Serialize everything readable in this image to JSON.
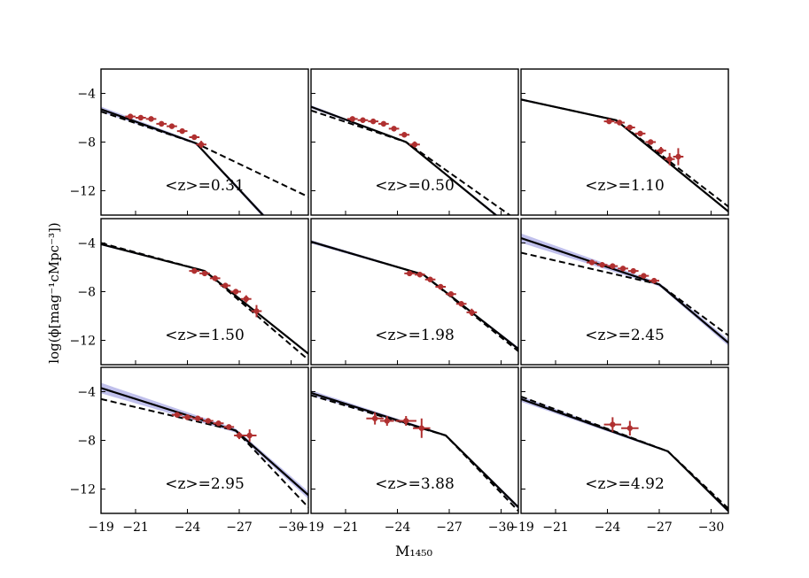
{
  "figure": {
    "xlabel": "M₁₄₅₀",
    "ylabel": "log(ϕ[mag⁻¹cMpc⁻³])"
  },
  "colors": {
    "data_marker": "#b03030",
    "model_line": "#000000",
    "uncertainty_band": "#8c8cdc"
  },
  "chart_data": [
    {
      "type": "line",
      "annotation": "<z>=0.31",
      "xlim": [
        -19,
        -31
      ],
      "ylim": [
        -14,
        -2
      ],
      "xticks": [
        "−19",
        "−21",
        "−24",
        "−27",
        "−30"
      ],
      "yticks": [
        "−4",
        "−8",
        "−12"
      ],
      "solid": {
        "x": [
          -19,
          -24.5,
          -31
        ],
        "y": [
          -5.3,
          -8.1,
          -18.0
        ]
      },
      "dashed": {
        "x": [
          -19,
          -24.5,
          -31
        ],
        "y": [
          -5.5,
          -8.1,
          -12.5
        ]
      },
      "band": 0.25,
      "points": [
        {
          "x": -20.7,
          "y": -5.9,
          "xerr": 0.3,
          "yerr": 0.15
        },
        {
          "x": -21.3,
          "y": -6.0,
          "xerr": 0.3,
          "yerr": 0.15
        },
        {
          "x": -21.9,
          "y": -6.1,
          "xerr": 0.3,
          "yerr": 0.15
        },
        {
          "x": -22.5,
          "y": -6.5,
          "xerr": 0.3,
          "yerr": 0.15
        },
        {
          "x": -23.1,
          "y": -6.7,
          "xerr": 0.3,
          "yerr": 0.15
        },
        {
          "x": -23.7,
          "y": -7.1,
          "xerr": 0.3,
          "yerr": 0.15
        },
        {
          "x": -24.4,
          "y": -7.6,
          "xerr": 0.3,
          "yerr": 0.2
        },
        {
          "x": -24.8,
          "y": -8.2,
          "xerr": 0.3,
          "yerr": 0.3
        }
      ]
    },
    {
      "type": "line",
      "annotation": "<z>=0.50",
      "xlim": [
        -19,
        -31
      ],
      "ylim": [
        -14,
        -2
      ],
      "xticks": [
        "−19",
        "−21",
        "−24",
        "−27",
        "−30"
      ],
      "yticks": [
        "−4",
        "−8",
        "−12"
      ],
      "solid": {
        "x": [
          -19,
          -24.5,
          -31
        ],
        "y": [
          -5.1,
          -8.0,
          -15.5
        ]
      },
      "dashed": {
        "x": [
          -19,
          -24.5,
          -31
        ],
        "y": [
          -5.4,
          -8.0,
          -14.5
        ]
      },
      "band": 0.15,
      "points": [
        {
          "x": -21.4,
          "y": -6.1,
          "xerr": 0.3,
          "yerr": 0.15
        },
        {
          "x": -22.0,
          "y": -6.2,
          "xerr": 0.3,
          "yerr": 0.15
        },
        {
          "x": -22.6,
          "y": -6.3,
          "xerr": 0.3,
          "yerr": 0.15
        },
        {
          "x": -23.2,
          "y": -6.5,
          "xerr": 0.3,
          "yerr": 0.15
        },
        {
          "x": -23.8,
          "y": -6.9,
          "xerr": 0.3,
          "yerr": 0.15
        },
        {
          "x": -24.4,
          "y": -7.4,
          "xerr": 0.3,
          "yerr": 0.2
        },
        {
          "x": -25.0,
          "y": -8.2,
          "xerr": 0.3,
          "yerr": 0.25
        }
      ]
    },
    {
      "type": "line",
      "annotation": "<z>=1.10",
      "xlim": [
        -19,
        -31
      ],
      "ylim": [
        -14,
        -2
      ],
      "xticks": [
        "−19",
        "−21",
        "−24",
        "−27",
        "−30"
      ],
      "yticks": [
        "−4",
        "−8",
        "−12"
      ],
      "solid": {
        "x": [
          -19,
          -24.5,
          -31
        ],
        "y": [
          -4.5,
          -6.2,
          -13.7
        ]
      },
      "dashed": {
        "x": [
          -19,
          -24.5,
          -31
        ],
        "y": [
          -4.5,
          -6.2,
          -13.3
        ]
      },
      "band": 0.1,
      "points": [
        {
          "x": -24.1,
          "y": -6.3,
          "xerr": 0.3,
          "yerr": 0.15
        },
        {
          "x": -24.7,
          "y": -6.4,
          "xerr": 0.3,
          "yerr": 0.15
        },
        {
          "x": -25.3,
          "y": -6.8,
          "xerr": 0.3,
          "yerr": 0.15
        },
        {
          "x": -25.9,
          "y": -7.3,
          "xerr": 0.3,
          "yerr": 0.15
        },
        {
          "x": -26.5,
          "y": -8.0,
          "xerr": 0.3,
          "yerr": 0.2
        },
        {
          "x": -27.1,
          "y": -8.7,
          "xerr": 0.3,
          "yerr": 0.3
        },
        {
          "x": -27.6,
          "y": -9.4,
          "xerr": 0.3,
          "yerr": 0.5
        },
        {
          "x": -28.1,
          "y": -9.2,
          "xerr": 0.3,
          "yerr": 0.7
        }
      ]
    },
    {
      "type": "line",
      "annotation": "<z>=1.50",
      "xlim": [
        -19,
        -31
      ],
      "ylim": [
        -14,
        -2
      ],
      "xticks": [
        "−19",
        "−21",
        "−24",
        "−27",
        "−30"
      ],
      "yticks": [
        "−4",
        "−8",
        "−12"
      ],
      "solid": {
        "x": [
          -19,
          -25.0,
          -31
        ],
        "y": [
          -4.1,
          -6.3,
          -13.1
        ]
      },
      "dashed": {
        "x": [
          -19,
          -25.0,
          -31
        ],
        "y": [
          -4.0,
          -6.3,
          -13.6
        ]
      },
      "band": 0.1,
      "points": [
        {
          "x": -24.4,
          "y": -6.3,
          "xerr": 0.3,
          "yerr": 0.15
        },
        {
          "x": -25.0,
          "y": -6.5,
          "xerr": 0.3,
          "yerr": 0.15
        },
        {
          "x": -25.6,
          "y": -6.9,
          "xerr": 0.3,
          "yerr": 0.15
        },
        {
          "x": -26.2,
          "y": -7.5,
          "xerr": 0.3,
          "yerr": 0.15
        },
        {
          "x": -26.8,
          "y": -8.0,
          "xerr": 0.3,
          "yerr": 0.2
        },
        {
          "x": -27.4,
          "y": -8.6,
          "xerr": 0.3,
          "yerr": 0.3
        },
        {
          "x": -28.0,
          "y": -9.6,
          "xerr": 0.3,
          "yerr": 0.5
        }
      ]
    },
    {
      "type": "line",
      "annotation": "<z>=1.98",
      "xlim": [
        -19,
        -31
      ],
      "ylim": [
        -14,
        -2
      ],
      "xticks": [
        "−19",
        "−21",
        "−24",
        "−27",
        "−30"
      ],
      "yticks": [
        "−4",
        "−8",
        "−12"
      ],
      "solid": {
        "x": [
          -19,
          -25.5,
          -31
        ],
        "y": [
          -3.9,
          -6.6,
          -12.7
        ]
      },
      "dashed": {
        "x": [
          -19,
          -25.5,
          -31
        ],
        "y": [
          -3.9,
          -6.6,
          -12.9
        ]
      },
      "band": 0.15,
      "points": [
        {
          "x": -24.7,
          "y": -6.5,
          "xerr": 0.3,
          "yerr": 0.15
        },
        {
          "x": -25.3,
          "y": -6.6,
          "xerr": 0.3,
          "yerr": 0.15
        },
        {
          "x": -25.9,
          "y": -7.0,
          "xerr": 0.3,
          "yerr": 0.15
        },
        {
          "x": -26.5,
          "y": -7.6,
          "xerr": 0.3,
          "yerr": 0.15
        },
        {
          "x": -27.1,
          "y": -8.2,
          "xerr": 0.3,
          "yerr": 0.2
        },
        {
          "x": -27.7,
          "y": -9.0,
          "xerr": 0.3,
          "yerr": 0.2
        },
        {
          "x": -28.3,
          "y": -9.7,
          "xerr": 0.3,
          "yerr": 0.3
        }
      ]
    },
    {
      "type": "line",
      "annotation": "<z>=2.45",
      "xlim": [
        -19,
        -31
      ],
      "ylim": [
        -14,
        -2
      ],
      "xticks": [
        "−19",
        "−21",
        "−24",
        "−27",
        "−30"
      ],
      "yticks": [
        "−4",
        "−8",
        "−12"
      ],
      "solid": {
        "x": [
          -19,
          -27.0,
          -31
        ],
        "y": [
          -3.6,
          -7.4,
          -12.2
        ]
      },
      "dashed": {
        "x": [
          -19,
          -27.0,
          -31
        ],
        "y": [
          -4.8,
          -7.4,
          -11.6
        ]
      },
      "band": 0.35,
      "points": [
        {
          "x": -23.1,
          "y": -5.6,
          "xerr": 0.3,
          "yerr": 0.15
        },
        {
          "x": -23.7,
          "y": -5.8,
          "xerr": 0.3,
          "yerr": 0.15
        },
        {
          "x": -24.3,
          "y": -5.9,
          "xerr": 0.3,
          "yerr": 0.15
        },
        {
          "x": -24.9,
          "y": -6.1,
          "xerr": 0.3,
          "yerr": 0.15
        },
        {
          "x": -25.5,
          "y": -6.3,
          "xerr": 0.3,
          "yerr": 0.15
        },
        {
          "x": -26.1,
          "y": -6.7,
          "xerr": 0.3,
          "yerr": 0.15
        },
        {
          "x": -26.7,
          "y": -7.1,
          "xerr": 0.3,
          "yerr": 0.2
        }
      ]
    },
    {
      "type": "line",
      "annotation": "<z>=2.95",
      "xlim": [
        -19,
        -31
      ],
      "ylim": [
        -14,
        -2
      ],
      "xticks": [
        "−19",
        "−21",
        "−24",
        "−27",
        "−30"
      ],
      "yticks": [
        "−4",
        "−8",
        "−12"
      ],
      "solid": {
        "x": [
          -19,
          -26.8,
          -31
        ],
        "y": [
          -3.7,
          -7.2,
          -12.5
        ]
      },
      "dashed": {
        "x": [
          -19,
          -26.8,
          -31
        ],
        "y": [
          -4.6,
          -7.2,
          -13.5
        ]
      },
      "band": 0.4,
      "points": [
        {
          "x": -23.4,
          "y": -5.9,
          "xerr": 0.3,
          "yerr": 0.15
        },
        {
          "x": -24.0,
          "y": -6.1,
          "xerr": 0.3,
          "yerr": 0.15
        },
        {
          "x": -24.6,
          "y": -6.2,
          "xerr": 0.3,
          "yerr": 0.15
        },
        {
          "x": -25.2,
          "y": -6.4,
          "xerr": 0.3,
          "yerr": 0.15
        },
        {
          "x": -25.8,
          "y": -6.6,
          "xerr": 0.3,
          "yerr": 0.15
        },
        {
          "x": -26.4,
          "y": -6.9,
          "xerr": 0.3,
          "yerr": 0.2
        },
        {
          "x": -27.0,
          "y": -7.6,
          "xerr": 0.3,
          "yerr": 0.3
        },
        {
          "x": -27.6,
          "y": -7.6,
          "xerr": 0.4,
          "yerr": 0.5
        }
      ]
    },
    {
      "type": "line",
      "annotation": "<z>=3.88",
      "xlim": [
        -19,
        -31
      ],
      "ylim": [
        -14,
        -2
      ],
      "xticks": [
        "−19",
        "−21",
        "−24",
        "−27",
        "−30"
      ],
      "yticks": [
        "−4",
        "−8",
        "−12"
      ],
      "solid": {
        "x": [
          -19,
          -26.8,
          -31
        ],
        "y": [
          -4.1,
          -7.6,
          -13.5
        ]
      },
      "dashed": {
        "x": [
          -19,
          -26.8,
          -31
        ],
        "y": [
          -4.3,
          -7.6,
          -13.8
        ]
      },
      "band": 0.2,
      "points": [
        {
          "x": -22.7,
          "y": -6.2,
          "xerr": 0.5,
          "yerr": 0.5
        },
        {
          "x": -23.4,
          "y": -6.4,
          "xerr": 0.4,
          "yerr": 0.4
        },
        {
          "x": -24.5,
          "y": -6.4,
          "xerr": 0.6,
          "yerr": 0.4
        },
        {
          "x": -25.4,
          "y": -7.0,
          "xerr": 0.5,
          "yerr": 0.8
        }
      ]
    },
    {
      "type": "line",
      "annotation": "<z>=4.92",
      "xlim": [
        -19,
        -31
      ],
      "ylim": [
        -14,
        -2
      ],
      "xticks": [
        "−19",
        "−21",
        "−24",
        "−27",
        "−30"
      ],
      "yticks": [
        "−4",
        "−8",
        "−12"
      ],
      "solid": {
        "x": [
          -19,
          -27.5,
          -31
        ],
        "y": [
          -4.6,
          -8.9,
          -13.8
        ]
      },
      "dashed": {
        "x": [
          -19,
          -27.5,
          -31
        ],
        "y": [
          -4.4,
          -8.9,
          -13.6
        ]
      },
      "band": 0.2,
      "points": [
        {
          "x": -24.3,
          "y": -6.7,
          "xerr": 0.5,
          "yerr": 0.6
        },
        {
          "x": -25.3,
          "y": -7.0,
          "xerr": 0.5,
          "yerr": 0.6
        }
      ]
    }
  ]
}
